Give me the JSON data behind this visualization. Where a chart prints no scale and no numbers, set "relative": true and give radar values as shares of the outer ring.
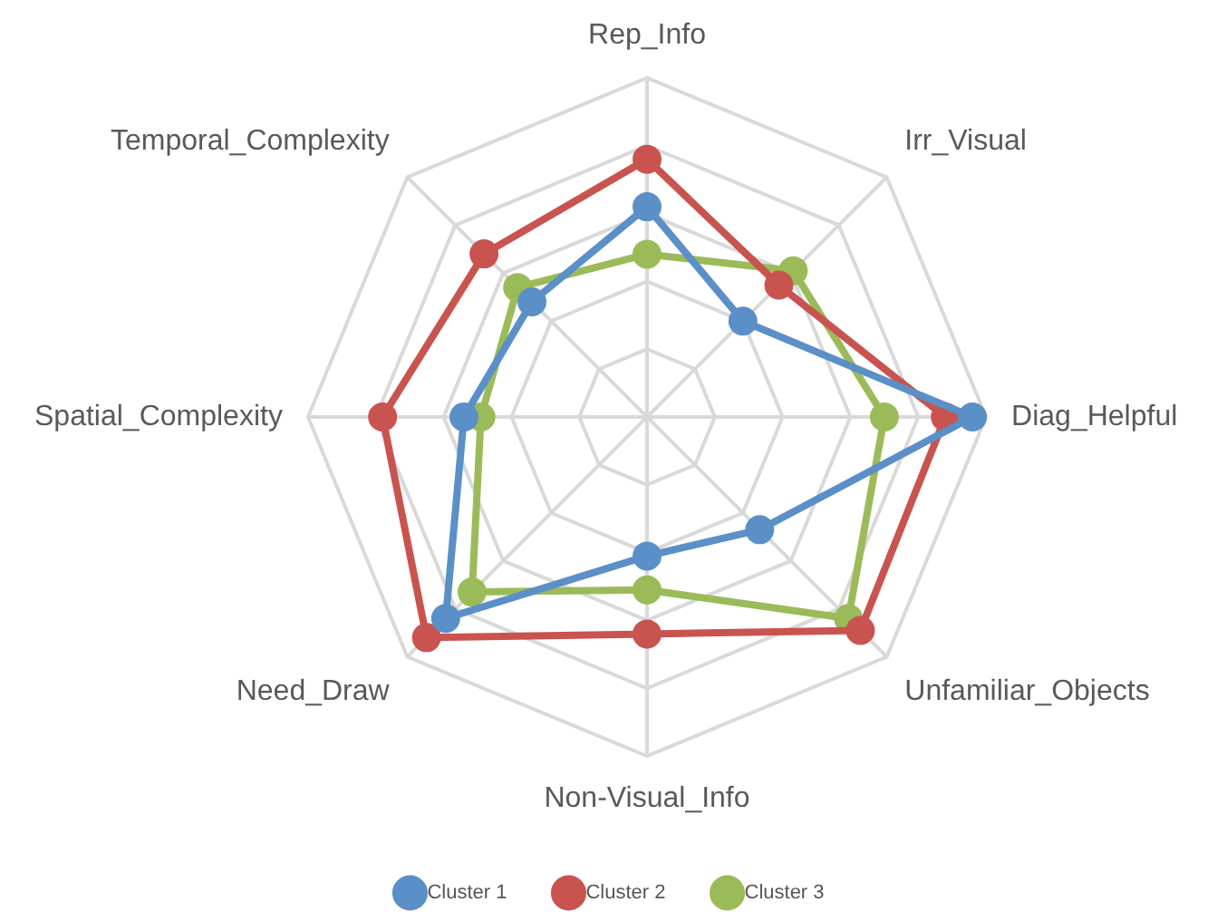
{
  "chart_data": {
    "type": "radar",
    "relative": true,
    "categories": [
      "Rep_Info",
      "Irr_Visual",
      "Diag_Helpful",
      "Unfamiliar_Objects",
      "Non-Visual_Info",
      "Need_Draw",
      "Spatial_Complexity",
      "Temporal_Complexity"
    ],
    "series": [
      {
        "name": "Cluster 1",
        "color": "#5b8fc7",
        "values": [
          0.62,
          0.4,
          0.96,
          0.47,
          0.41,
          0.84,
          0.54,
          0.48
        ]
      },
      {
        "name": "Cluster 2",
        "color": "#c9534f",
        "values": [
          0.76,
          0.55,
          0.88,
          0.89,
          0.64,
          0.92,
          0.78,
          0.68
        ]
      },
      {
        "name": "Cluster 3",
        "color": "#9bbb59",
        "values": [
          0.48,
          0.61,
          0.7,
          0.84,
          0.51,
          0.73,
          0.49,
          0.54
        ]
      }
    ],
    "grid": true,
    "legend": "bottom",
    "marker": "circle"
  }
}
